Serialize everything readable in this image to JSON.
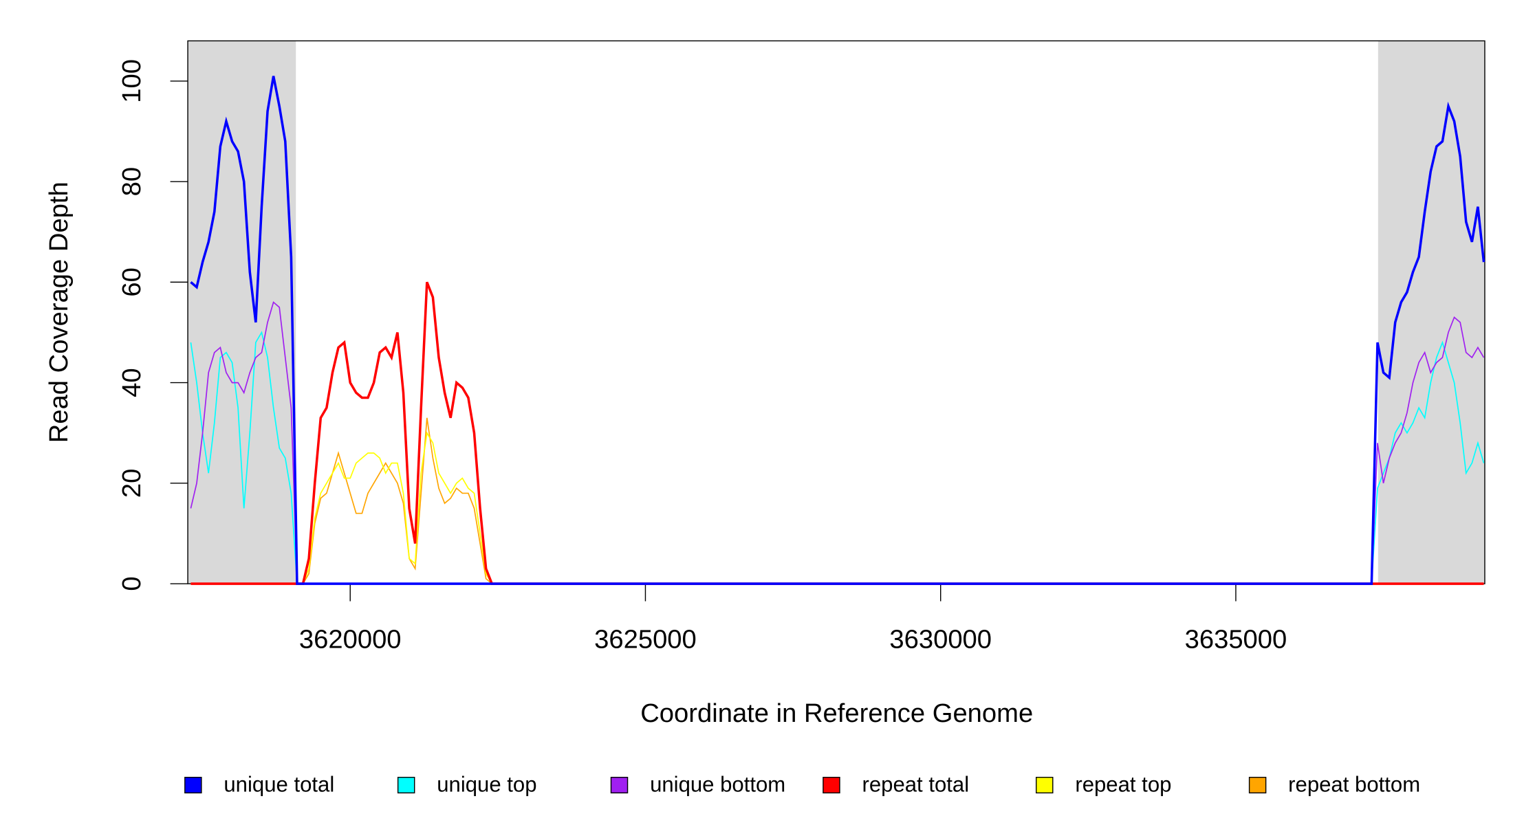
{
  "chart_data": {
    "type": "line",
    "xlabel": "Coordinate in Reference Genome",
    "ylabel": "Read Coverage Depth",
    "xlim": [
      3617249,
      3639217
    ],
    "ylim": [
      0,
      108
    ],
    "xticks": [
      3620000,
      3625000,
      3630000,
      3635000
    ],
    "yticks": [
      0,
      20,
      40,
      60,
      80,
      100
    ],
    "shaded_regions": [
      [
        3617249,
        3619080
      ],
      [
        3637410,
        3639217
      ]
    ],
    "shade_color": "#d9d9d9",
    "legend": "bottom",
    "x": [
      3617300,
      3617400,
      3617500,
      3617600,
      3617700,
      3617800,
      3617900,
      3618000,
      3618100,
      3618200,
      3618300,
      3618400,
      3618500,
      3618600,
      3618700,
      3618800,
      3618900,
      3619000,
      3619100,
      3619200,
      3619300,
      3619400,
      3619500,
      3619600,
      3619700,
      3619800,
      3619900,
      3620000,
      3620100,
      3620200,
      3620300,
      3620400,
      3620500,
      3620600,
      3620700,
      3620800,
      3620900,
      3621000,
      3621100,
      3621200,
      3621300,
      3621400,
      3621500,
      3621600,
      3621700,
      3621800,
      3621900,
      3622000,
      3622100,
      3622200,
      3622300,
      3622400,
      3630000,
      3637300,
      3637400,
      3637500,
      3637600,
      3637700,
      3637800,
      3637900,
      3638000,
      3638100,
      3638200,
      3638300,
      3638400,
      3638500,
      3638600,
      3638700,
      3638800,
      3638900,
      3639000,
      3639100,
      3639200
    ],
    "series": [
      {
        "name": "unique total",
        "color": "#0000ff",
        "width": 2.5,
        "values": [
          60,
          59,
          64,
          68,
          74,
          87,
          92,
          88,
          86,
          80,
          62,
          52,
          75,
          94,
          101,
          95,
          88,
          65,
          0,
          0,
          0,
          0,
          0,
          0,
          0,
          0,
          0,
          0,
          0,
          0,
          0,
          0,
          0,
          0,
          0,
          0,
          0,
          0,
          0,
          0,
          0,
          0,
          0,
          0,
          0,
          0,
          0,
          0,
          0,
          0,
          0,
          0,
          0,
          0,
          48,
          42,
          41,
          52,
          56,
          58,
          62,
          65,
          74,
          82,
          87,
          88,
          95,
          92,
          85,
          72,
          68,
          75,
          64
        ]
      },
      {
        "name": "unique top",
        "color": "#00ffff",
        "width": 1.2,
        "values": [
          48,
          40,
          30,
          22,
          32,
          45,
          46,
          44,
          35,
          15,
          30,
          48,
          50,
          45,
          35,
          27,
          25,
          18,
          0,
          0,
          0,
          0,
          0,
          0,
          0,
          0,
          0,
          0,
          0,
          0,
          0,
          0,
          0,
          0,
          0,
          0,
          0,
          0,
          0,
          0,
          0,
          0,
          0,
          0,
          0,
          0,
          0,
          0,
          0,
          0,
          0,
          0,
          0,
          0,
          19,
          22,
          25,
          30,
          32,
          30,
          32,
          35,
          33,
          40,
          45,
          48,
          44,
          40,
          32,
          22,
          24,
          28,
          24
        ]
      },
      {
        "name": "unique bottom",
        "color": "#a020f0",
        "width": 1.2,
        "values": [
          15,
          20,
          30,
          42,
          46,
          47,
          42,
          40,
          40,
          38,
          42,
          45,
          46,
          52,
          56,
          55,
          45,
          35,
          0,
          0,
          0,
          0,
          0,
          0,
          0,
          0,
          0,
          0,
          0,
          0,
          0,
          0,
          0,
          0,
          0,
          0,
          0,
          0,
          0,
          0,
          0,
          0,
          0,
          0,
          0,
          0,
          0,
          0,
          0,
          0,
          0,
          0,
          0,
          0,
          28,
          20,
          25,
          28,
          30,
          34,
          40,
          44,
          46,
          42,
          44,
          45,
          50,
          53,
          52,
          46,
          45,
          47,
          45
        ]
      },
      {
        "name": "repeat total",
        "color": "#ff0000",
        "width": 2.5,
        "values": [
          0,
          0,
          0,
          0,
          0,
          0,
          0,
          0,
          0,
          0,
          0,
          0,
          0,
          0,
          0,
          0,
          0,
          0,
          0,
          0,
          5,
          20,
          33,
          35,
          42,
          47,
          48,
          40,
          38,
          37,
          37,
          40,
          46,
          47,
          45,
          50,
          38,
          15,
          8,
          35,
          60,
          57,
          45,
          38,
          33,
          40,
          39,
          37,
          30,
          15,
          3,
          0,
          0,
          0,
          0,
          0,
          0,
          0,
          0,
          0,
          0,
          0,
          0,
          0,
          0,
          0,
          0,
          0,
          0,
          0,
          0,
          0,
          0
        ]
      },
      {
        "name": "repeat top",
        "color": "#ffff00",
        "width": 1.2,
        "values": [
          0,
          0,
          0,
          0,
          0,
          0,
          0,
          0,
          0,
          0,
          0,
          0,
          0,
          0,
          0,
          0,
          0,
          0,
          0,
          0,
          3,
          13,
          18,
          20,
          22,
          24,
          21,
          21,
          24,
          25,
          26,
          26,
          25,
          22,
          24,
          24,
          18,
          5,
          4,
          22,
          30,
          28,
          22,
          20,
          18,
          20,
          21,
          19,
          18,
          10,
          2,
          0,
          0,
          0,
          0,
          0,
          0,
          0,
          0,
          0,
          0,
          0,
          0,
          0,
          0,
          0,
          0,
          0,
          0,
          0,
          0,
          0,
          0
        ]
      },
      {
        "name": "repeat bottom",
        "color": "#ffa500",
        "width": 1.2,
        "values": [
          0,
          0,
          0,
          0,
          0,
          0,
          0,
          0,
          0,
          0,
          0,
          0,
          0,
          0,
          0,
          0,
          0,
          0,
          0,
          0,
          2,
          12,
          17,
          18,
          22,
          26,
          22,
          18,
          14,
          14,
          18,
          20,
          22,
          24,
          22,
          20,
          16,
          5,
          3,
          18,
          33,
          25,
          19,
          16,
          17,
          19,
          18,
          18,
          15,
          8,
          1,
          0,
          0,
          0,
          0,
          0,
          0,
          0,
          0,
          0,
          0,
          0,
          0,
          0,
          0,
          0,
          0,
          0,
          0,
          0,
          0,
          0,
          0
        ]
      }
    ]
  }
}
